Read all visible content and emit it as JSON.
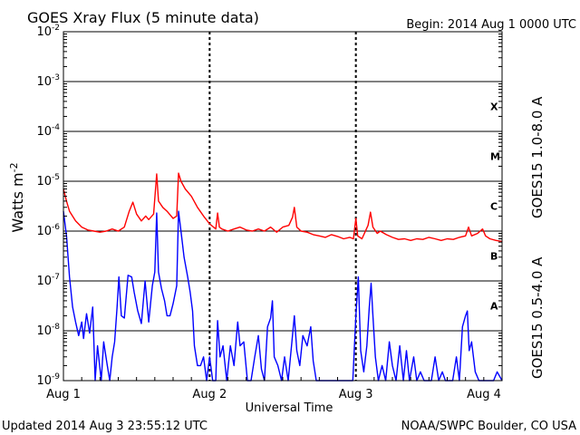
{
  "header": {
    "title": "GOES Xray Flux (5 minute data)",
    "begin": "Begin:  2014 Aug 1 0000 UTC"
  },
  "footer": {
    "updated": "Updated 2014 Aug  3 23:55:12 UTC",
    "credit": "NOAA/SWPC Boulder, CO USA"
  },
  "chart_data": {
    "type": "line",
    "xlabel": "Universal Time",
    "ylabel": "Watts m",
    "ylabel_sup": "-2",
    "yscale": "log",
    "ylim": [
      1e-09,
      0.01
    ],
    "xlim": [
      0,
      72
    ],
    "x_unit": "hours since 2014 Aug 1 0000 UTC",
    "x_ticks": [
      {
        "value": 0,
        "label": "Aug 1"
      },
      {
        "value": 24,
        "label": "Aug 2"
      },
      {
        "value": 48,
        "label": "Aug 3"
      },
      {
        "value": 72,
        "label": "Aug 4"
      }
    ],
    "y_ticks": [
      {
        "exp": -9,
        "base": "10",
        "sup": "-9"
      },
      {
        "exp": -8,
        "base": "10",
        "sup": "-8"
      },
      {
        "exp": -7,
        "base": "10",
        "sup": "-7"
      },
      {
        "exp": -6,
        "base": "10",
        "sup": "-6"
      },
      {
        "exp": -5,
        "base": "10",
        "sup": "-5"
      },
      {
        "exp": -4,
        "base": "10",
        "sup": "-4"
      },
      {
        "exp": -3,
        "base": "10",
        "sup": "-3"
      },
      {
        "exp": -2,
        "base": "10",
        "sup": "-2"
      }
    ],
    "flare_classes": [
      {
        "label": "A",
        "exp": -7.5
      },
      {
        "label": "B",
        "exp": -6.5
      },
      {
        "label": "C",
        "exp": -5.5
      },
      {
        "label": "M",
        "exp": -4.5
      },
      {
        "label": "X",
        "exp": -3.5
      }
    ],
    "grid": true,
    "legend_placement": "right-vertical",
    "series": [
      {
        "name": "GOES15 1.0-8.0 A",
        "color": "#ff0000",
        "points": [
          [
            0,
            7e-06
          ],
          [
            0.5,
            4e-06
          ],
          [
            1,
            2.5e-06
          ],
          [
            2,
            1.6e-06
          ],
          [
            3,
            1.2e-06
          ],
          [
            4,
            1.05e-06
          ],
          [
            5,
            1e-06
          ],
          [
            6,
            9.5e-07
          ],
          [
            7,
            1e-06
          ],
          [
            8,
            1.1e-06
          ],
          [
            9,
            1e-06
          ],
          [
            10,
            1.2e-06
          ],
          [
            10.8,
            2.5e-06
          ],
          [
            11.4,
            3.8e-06
          ],
          [
            12,
            2.2e-06
          ],
          [
            12.8,
            1.6e-06
          ],
          [
            13.5,
            2e-06
          ],
          [
            14,
            1.7e-06
          ],
          [
            14.8,
            2.2e-06
          ],
          [
            15.3,
            1.4e-05
          ],
          [
            15.6,
            4e-06
          ],
          [
            16.3,
            3e-06
          ],
          [
            17,
            2.5e-06
          ],
          [
            18,
            1.8e-06
          ],
          [
            18.6,
            2e-06
          ],
          [
            18.9,
            1.45e-05
          ],
          [
            19.3,
            1e-05
          ],
          [
            20,
            7e-06
          ],
          [
            21,
            5e-06
          ],
          [
            22,
            3e-06
          ],
          [
            23,
            2e-06
          ],
          [
            24,
            1.4e-06
          ],
          [
            25,
            1.1e-06
          ],
          [
            25.3,
            2.3e-06
          ],
          [
            25.6,
            1.2e-06
          ],
          [
            26,
            1.1e-06
          ],
          [
            27,
            1e-06
          ],
          [
            28,
            1.1e-06
          ],
          [
            29,
            1.2e-06
          ],
          [
            30,
            1.05e-06
          ],
          [
            31,
            1e-06
          ],
          [
            32,
            1.1e-06
          ],
          [
            33,
            1e-06
          ],
          [
            34,
            1.2e-06
          ],
          [
            35,
            9.5e-07
          ],
          [
            36,
            1.2e-06
          ],
          [
            37,
            1.3e-06
          ],
          [
            37.6,
            1.9e-06
          ],
          [
            37.9,
            3e-06
          ],
          [
            38.3,
            1.2e-06
          ],
          [
            39,
            1e-06
          ],
          [
            40,
            9.5e-07
          ],
          [
            41,
            8.5e-07
          ],
          [
            42,
            8e-07
          ],
          [
            43,
            7.5e-07
          ],
          [
            44,
            8.5e-07
          ],
          [
            45,
            7.8e-07
          ],
          [
            46,
            7e-07
          ],
          [
            47,
            7.5e-07
          ],
          [
            47.6,
            7e-07
          ],
          [
            48,
            1.8e-06
          ],
          [
            48.3,
            8e-07
          ],
          [
            49,
            7e-07
          ],
          [
            50,
            1.3e-06
          ],
          [
            50.4,
            2.4e-06
          ],
          [
            50.8,
            1.2e-06
          ],
          [
            51.5,
            9e-07
          ],
          [
            52,
            1e-06
          ],
          [
            53,
            8.5e-07
          ],
          [
            54,
            7.5e-07
          ],
          [
            55,
            6.8e-07
          ],
          [
            56,
            7e-07
          ],
          [
            57,
            6.5e-07
          ],
          [
            58,
            7e-07
          ],
          [
            59,
            6.8e-07
          ],
          [
            60,
            7.5e-07
          ],
          [
            61,
            7e-07
          ],
          [
            62,
            6.5e-07
          ],
          [
            63,
            7e-07
          ],
          [
            64,
            6.8e-07
          ],
          [
            65,
            7.5e-07
          ],
          [
            66,
            8e-07
          ],
          [
            66.5,
            1.2e-06
          ],
          [
            67,
            8e-07
          ],
          [
            68,
            9e-07
          ],
          [
            68.8,
            1.1e-06
          ],
          [
            69.3,
            8e-07
          ],
          [
            70,
            7e-07
          ],
          [
            71,
            6.5e-07
          ],
          [
            72,
            6.2e-07
          ]
        ]
      },
      {
        "name": "GOES15 0.5-4.0 A",
        "color": "#0000ff",
        "points": [
          [
            0,
            2.5e-06
          ],
          [
            0.5,
            8e-07
          ],
          [
            1,
            1.2e-07
          ],
          [
            1.5,
            3e-08
          ],
          [
            2,
            1.5e-08
          ],
          [
            2.5,
            8e-09
          ],
          [
            3,
            1.5e-08
          ],
          [
            3.3,
            7e-09
          ],
          [
            3.8,
            2.2e-08
          ],
          [
            4.3,
            9e-09
          ],
          [
            4.8,
            3e-08
          ],
          [
            5.2,
            1e-09
          ],
          [
            5.6,
            5e-09
          ],
          [
            6.2,
            1e-09
          ],
          [
            6.6,
            6e-09
          ],
          [
            7.2,
            2e-09
          ],
          [
            7.6,
            1e-09
          ],
          [
            8,
            3e-09
          ],
          [
            8.4,
            6e-09
          ],
          [
            8.8,
            3e-08
          ],
          [
            9.1,
            1.2e-07
          ],
          [
            9.5,
            2e-08
          ],
          [
            10,
            1.8e-08
          ],
          [
            10.6,
            1.3e-07
          ],
          [
            11.2,
            1.2e-07
          ],
          [
            11.6,
            6e-08
          ],
          [
            12.2,
            2.5e-08
          ],
          [
            12.8,
            1.4e-08
          ],
          [
            13.4,
            1e-07
          ],
          [
            14,
            1.5e-08
          ],
          [
            14.6,
            8e-08
          ],
          [
            15,
            1.5e-07
          ],
          [
            15.3,
            2.3e-06
          ],
          [
            15.6,
            1.5e-07
          ],
          [
            16.1,
            7e-08
          ],
          [
            16.6,
            4e-08
          ],
          [
            17,
            2e-08
          ],
          [
            17.5,
            2e-08
          ],
          [
            18,
            3.5e-08
          ],
          [
            18.6,
            8e-08
          ],
          [
            18.9,
            2.5e-06
          ],
          [
            19.3,
            1e-06
          ],
          [
            19.8,
            3e-07
          ],
          [
            20.4,
            1.2e-07
          ],
          [
            20.8,
            6e-08
          ],
          [
            21.2,
            2.5e-08
          ],
          [
            21.5,
            5e-09
          ],
          [
            22,
            2e-09
          ],
          [
            22.5,
            2e-09
          ],
          [
            23,
            3e-09
          ],
          [
            23.5,
            1e-09
          ],
          [
            24,
            3e-09
          ],
          [
            24.5,
            1e-09
          ],
          [
            25,
            1e-09
          ],
          [
            25.3,
            1.6e-08
          ],
          [
            25.7,
            3e-09
          ],
          [
            26.2,
            5e-09
          ],
          [
            26.8,
            1e-09
          ],
          [
            27.4,
            5e-09
          ],
          [
            28,
            2e-09
          ],
          [
            28.6,
            1.5e-08
          ],
          [
            29,
            5e-09
          ],
          [
            29.6,
            6e-09
          ],
          [
            30.2,
            1e-09
          ],
          [
            30.8,
            1e-09
          ],
          [
            31.4,
            3e-09
          ],
          [
            32,
            8e-09
          ],
          [
            32.5,
            1.7e-09
          ],
          [
            33,
            1e-09
          ],
          [
            33.5,
            1.2e-08
          ],
          [
            34,
            1.8e-08
          ],
          [
            34.3,
            4e-08
          ],
          [
            34.6,
            3e-09
          ],
          [
            35.2,
            2e-09
          ],
          [
            35.8,
            1e-09
          ],
          [
            36.3,
            3e-09
          ],
          [
            36.9,
            1e-09
          ],
          [
            37.5,
            6e-09
          ],
          [
            37.9,
            2e-08
          ],
          [
            38.3,
            4e-09
          ],
          [
            38.8,
            2e-09
          ],
          [
            39.3,
            8e-09
          ],
          [
            40,
            5e-09
          ],
          [
            40.6,
            1.2e-08
          ],
          [
            41,
            2.5e-09
          ],
          [
            41.5,
            1e-09
          ],
          [
            42.2,
            1e-09
          ],
          [
            42.8,
            1e-09
          ],
          [
            43.5,
            1e-09
          ],
          [
            44.1,
            1e-09
          ],
          [
            44.7,
            1e-09
          ],
          [
            45.4,
            1e-09
          ],
          [
            46.1,
            1e-09
          ],
          [
            46.8,
            1e-09
          ],
          [
            47.5,
            1e-09
          ],
          [
            48,
            2e-08
          ],
          [
            48.4,
            1.2e-07
          ],
          [
            48.8,
            4e-09
          ],
          [
            49.3,
            1.5e-09
          ],
          [
            49.8,
            5e-09
          ],
          [
            50.2,
            3e-08
          ],
          [
            50.5,
            9e-08
          ],
          [
            50.8,
            2e-08
          ],
          [
            51.2,
            3e-09
          ],
          [
            51.7,
            1e-09
          ],
          [
            52.3,
            2e-09
          ],
          [
            52.9,
            1e-09
          ],
          [
            53.5,
            6e-09
          ],
          [
            54,
            2e-09
          ],
          [
            54.6,
            1e-09
          ],
          [
            55.2,
            5e-09
          ],
          [
            55.8,
            1e-09
          ],
          [
            56.3,
            4e-09
          ],
          [
            56.8,
            1e-09
          ],
          [
            57.5,
            3e-09
          ],
          [
            58,
            1e-09
          ],
          [
            58.6,
            1.5e-09
          ],
          [
            59.2,
            1e-09
          ],
          [
            59.8,
            1e-09
          ],
          [
            60.4,
            1e-09
          ],
          [
            61,
            3e-09
          ],
          [
            61.6,
            1e-09
          ],
          [
            62.2,
            1.5e-09
          ],
          [
            62.7,
            1e-09
          ],
          [
            63.3,
            1e-09
          ],
          [
            63.9,
            1e-09
          ],
          [
            64.5,
            3e-09
          ],
          [
            65,
            1e-09
          ],
          [
            65.5,
            1.2e-08
          ],
          [
            66,
            2e-08
          ],
          [
            66.3,
            2.5e-08
          ],
          [
            66.6,
            4e-09
          ],
          [
            67,
            6e-09
          ],
          [
            67.6,
            1.5e-09
          ],
          [
            68.2,
            1e-09
          ],
          [
            68.8,
            1e-09
          ],
          [
            69.4,
            1e-09
          ],
          [
            70,
            1e-09
          ],
          [
            70.6,
            1e-09
          ],
          [
            71.2,
            1.5e-09
          ],
          [
            72,
            1e-09
          ]
        ]
      }
    ]
  }
}
